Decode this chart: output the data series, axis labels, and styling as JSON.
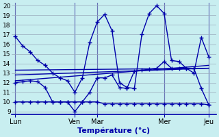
{
  "title": "Température (°c)",
  "bg_color": "#c8eef0",
  "grid_color": "#9aaabb",
  "line_color": "#0000aa",
  "x_tick_labels": [
    "Lun",
    "Ven",
    "Mar",
    "Mer",
    "Jeu"
  ],
  "x_tick_positions": [
    0,
    8,
    11,
    20,
    26
  ],
  "vline_positions": [
    0,
    8,
    11,
    20,
    26
  ],
  "xlim": [
    -0.5,
    27
  ],
  "ylim": [
    9,
    20
  ],
  "yticks": [
    9,
    10,
    11,
    12,
    13,
    14,
    15,
    16,
    17,
    18,
    19,
    20
  ],
  "series1_x": [
    0,
    1,
    2,
    3,
    4,
    5,
    6,
    7,
    8,
    9,
    10,
    11,
    12,
    13,
    14,
    15,
    16,
    17,
    18,
    19,
    20,
    21,
    22,
    23,
    24,
    25,
    26
  ],
  "series1_y": [
    16.8,
    15.8,
    15.2,
    14.3,
    13.8,
    13.0,
    12.5,
    12.2,
    11.0,
    12.5,
    16.2,
    18.3,
    19.1,
    17.4,
    12.0,
    11.5,
    11.4,
    17.0,
    19.2,
    20.0,
    19.2,
    14.3,
    14.2,
    13.5,
    13.0,
    16.7,
    14.7
  ],
  "series2_x": [
    0,
    1,
    2,
    3,
    4,
    5,
    6,
    7,
    8,
    9,
    10,
    11,
    12,
    13,
    14,
    15,
    16,
    17,
    18,
    19,
    20,
    21,
    22,
    23,
    24,
    25,
    26
  ],
  "series2_y": [
    12.0,
    12.1,
    12.2,
    12.1,
    11.5,
    10.0,
    10.0,
    10.0,
    9.0,
    10.0,
    11.0,
    12.5,
    12.5,
    12.8,
    11.5,
    11.4,
    13.2,
    13.3,
    13.4,
    13.5,
    14.2,
    13.5,
    13.5,
    13.5,
    13.5,
    11.4,
    9.7
  ],
  "series3_x": [
    0,
    1,
    2,
    3,
    4,
    5,
    6,
    7,
    8,
    9,
    10,
    11,
    12,
    13,
    14,
    15,
    16,
    17,
    18,
    19,
    20,
    21,
    22,
    23,
    24,
    25,
    26
  ],
  "series3_y": [
    10.0,
    10.0,
    10.0,
    10.0,
    10.0,
    10.0,
    10.0,
    10.0,
    10.0,
    10.0,
    10.0,
    10.0,
    9.8,
    9.8,
    9.8,
    9.8,
    9.8,
    9.8,
    9.8,
    9.8,
    9.8,
    9.8,
    9.8,
    9.8,
    9.8,
    9.8,
    9.7
  ],
  "trend1_x": [
    0,
    26
  ],
  "trend1_y": [
    12.2,
    13.8
  ],
  "trend2_x": [
    0,
    26
  ],
  "trend2_y": [
    12.8,
    13.5
  ],
  "trend3_x": [
    0,
    26
  ],
  "trend3_y": [
    13.3,
    13.5
  ]
}
